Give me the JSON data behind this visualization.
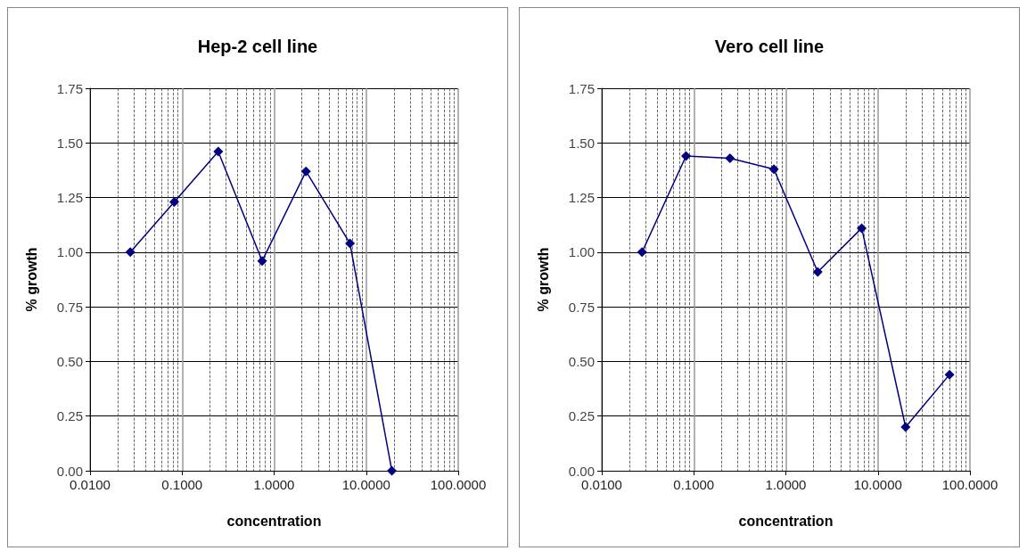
{
  "chart_data": [
    {
      "type": "line",
      "title": "Hep-2 cell line",
      "xlabel": "concentration",
      "ylabel": "% growth",
      "log": "x",
      "grid": true,
      "marker": "diamond",
      "xlim": [
        0.01,
        100
      ],
      "xticks": [
        {
          "value": 0.01,
          "label": "0.0100"
        },
        {
          "value": 0.1,
          "label": "0.1000"
        },
        {
          "value": 1,
          "label": "1.0000"
        },
        {
          "value": 10,
          "label": "10.0000"
        },
        {
          "value": 100,
          "label": "100.0000"
        }
      ],
      "ylim": [
        0,
        1.75
      ],
      "yticks": [
        {
          "value": 0,
          "label": "0.00"
        },
        {
          "value": 0.25,
          "label": "0.25"
        },
        {
          "value": 0.5,
          "label": "0.50"
        },
        {
          "value": 0.75,
          "label": "0.75"
        },
        {
          "value": 1,
          "label": "1.00"
        },
        {
          "value": 1.25,
          "label": "1.25"
        },
        {
          "value": 1.5,
          "label": "1.50"
        },
        {
          "value": 1.75,
          "label": "1.75"
        }
      ],
      "series": [
        {
          "color": "#000080",
          "x": [
            0.0274,
            0.0823,
            0.247,
            0.741,
            2.22,
            6.67,
            19
          ],
          "values": [
            1.0,
            1.23,
            1.46,
            0.96,
            1.37,
            1.04,
            0.0
          ]
        }
      ]
    },
    {
      "type": "line",
      "title": "Vero cell line",
      "xlabel": "concentration",
      "ylabel": "% growth",
      "log": "x",
      "grid": true,
      "marker": "diamond",
      "xlim": [
        0.01,
        100
      ],
      "xticks": [
        {
          "value": 0.01,
          "label": "0.0100"
        },
        {
          "value": 0.1,
          "label": "0.1000"
        },
        {
          "value": 1,
          "label": "1.0000"
        },
        {
          "value": 10,
          "label": "10.0000"
        },
        {
          "value": 100,
          "label": "100.0000"
        }
      ],
      "ylim": [
        0,
        1.75
      ],
      "yticks": [
        {
          "value": 0,
          "label": "0.00"
        },
        {
          "value": 0.25,
          "label": "0.25"
        },
        {
          "value": 0.5,
          "label": "0.50"
        },
        {
          "value": 0.75,
          "label": "0.75"
        },
        {
          "value": 1,
          "label": "1.00"
        },
        {
          "value": 1.25,
          "label": "1.25"
        },
        {
          "value": 1.5,
          "label": "1.50"
        },
        {
          "value": 1.75,
          "label": "1.75"
        }
      ],
      "series": [
        {
          "color": "#000080",
          "x": [
            0.0274,
            0.0823,
            0.247,
            0.741,
            2.22,
            6.67,
            20,
            60
          ],
          "values": [
            1.0,
            1.44,
            1.43,
            1.38,
            0.91,
            1.11,
            0.2,
            0.44
          ]
        }
      ]
    }
  ]
}
